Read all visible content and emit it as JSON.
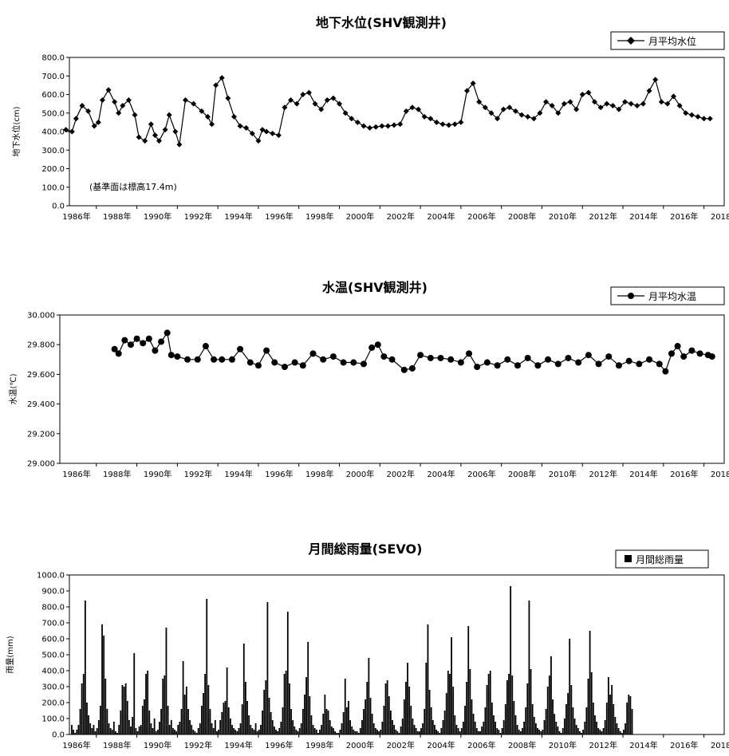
{
  "chart_data": [
    {
      "type": "line",
      "title": "地下水位(SHV観測井)",
      "ylabel": "地下水位(cm)",
      "xlabel": "",
      "xlim": [
        1986,
        2019
      ],
      "ylim": [
        0,
        800
      ],
      "yticks": [
        "0.0",
        "100.0",
        "200.0",
        "300.0",
        "400.0",
        "500.0",
        "600.0",
        "700.0",
        "800.0"
      ],
      "xticks": [
        "1986年",
        "1988年",
        "1990年",
        "1992年",
        "1994年",
        "1996年",
        "1998年",
        "2000年",
        "2002年",
        "2004年",
        "2006年",
        "2008年",
        "2010年",
        "2012年",
        "2014年",
        "2016年",
        "2018年"
      ],
      "annotation": "(基準面は標高17.4m)",
      "legend": "top-right",
      "grid": false,
      "series": [
        {
          "name": "月平均水位",
          "marker": "diamond",
          "x": [
            1986.5,
            1986.8,
            1987.0,
            1987.3,
            1987.6,
            1987.9,
            1988.1,
            1988.3,
            1988.6,
            1988.9,
            1989.1,
            1989.3,
            1989.6,
            1989.9,
            1990.1,
            1990.4,
            1990.7,
            1990.9,
            1991.1,
            1991.4,
            1991.6,
            1991.9,
            1992.1,
            1992.4,
            1992.8,
            1993.2,
            1993.5,
            1993.7,
            1993.9,
            1994.2,
            1994.5,
            1994.8,
            1995.1,
            1995.4,
            1995.7,
            1996.0,
            1996.2,
            1996.4,
            1996.7,
            1997.0,
            1997.3,
            1997.6,
            1997.9,
            1998.2,
            1998.5,
            1998.8,
            1999.1,
            1999.4,
            1999.7,
            2000.0,
            2000.3,
            2000.6,
            2000.9,
            2001.2,
            2001.5,
            2001.8,
            2002.1,
            2002.4,
            2002.7,
            2003.0,
            2003.3,
            2003.6,
            2003.9,
            2004.2,
            2004.5,
            2004.8,
            2005.1,
            2005.4,
            2005.7,
            2006.0,
            2006.3,
            2006.6,
            2006.9,
            2007.2,
            2007.5,
            2007.8,
            2008.1,
            2008.4,
            2008.7,
            2009.0,
            2009.3,
            2009.6,
            2009.9,
            2010.2,
            2010.5,
            2010.8,
            2011.1,
            2011.4,
            2011.7,
            2012.0,
            2012.3,
            2012.6,
            2012.9,
            2013.2,
            2013.5,
            2013.8,
            2014.1,
            2014.4,
            2014.7,
            2015.0,
            2015.3,
            2015.6,
            2015.9,
            2016.2,
            2016.5,
            2016.8,
            2017.1,
            2017.4,
            2017.7,
            2018.0,
            2018.3
          ],
          "y": [
            410,
            400,
            470,
            540,
            510,
            430,
            450,
            570,
            625,
            560,
            500,
            540,
            570,
            490,
            370,
            350,
            440,
            380,
            350,
            410,
            490,
            400,
            330,
            570,
            550,
            510,
            480,
            440,
            650,
            690,
            580,
            480,
            430,
            420,
            390,
            350,
            410,
            400,
            390,
            380,
            530,
            570,
            550,
            600,
            610,
            550,
            520,
            570,
            580,
            550,
            500,
            470,
            450,
            430,
            420,
            425,
            430,
            430,
            435,
            440,
            510,
            530,
            520,
            480,
            470,
            450,
            440,
            435,
            440,
            450,
            620,
            660,
            560,
            530,
            500,
            470,
            520,
            530,
            510,
            490,
            480,
            470,
            500,
            560,
            540,
            500,
            550,
            560,
            520,
            600,
            610,
            560,
            530,
            550,
            540,
            520,
            560,
            550,
            540,
            550,
            620,
            680,
            560,
            550,
            590,
            540,
            500,
            490,
            480,
            470,
            470
          ]
        }
      ]
    },
    {
      "type": "line",
      "title": "水温(SHV観測井)",
      "ylabel": "水温(℃)",
      "xlabel": "",
      "xlim": [
        1986,
        2019
      ],
      "ylim": [
        29.0,
        30.0
      ],
      "yticks": [
        "29.000",
        "29.200",
        "29.400",
        "29.600",
        "29.800",
        "30.000"
      ],
      "xticks": [
        "1986年",
        "1988年",
        "1990年",
        "1992年",
        "1994年",
        "1996年",
        "1998年",
        "2000年",
        "2002年",
        "2004年",
        "2006年",
        "2008年",
        "2010年",
        "2012年",
        "2014年",
        "2016年",
        "2018年"
      ],
      "legend": "top-right",
      "grid": false,
      "series": [
        {
          "name": "月平均水温",
          "marker": "circle",
          "x": [
            1988.9,
            1989.1,
            1989.4,
            1989.7,
            1990.0,
            1990.3,
            1990.6,
            1990.9,
            1991.2,
            1991.5,
            1991.7,
            1992.0,
            1992.5,
            1993.0,
            1993.4,
            1993.8,
            1994.2,
            1994.7,
            1995.1,
            1995.6,
            1996.0,
            1996.4,
            1996.8,
            1997.3,
            1997.8,
            1998.2,
            1998.7,
            1999.2,
            1999.7,
            2000.2,
            2000.7,
            2001.2,
            2001.6,
            2001.9,
            2002.2,
            2002.6,
            2003.2,
            2003.6,
            2004.0,
            2004.5,
            2005.0,
            2005.5,
            2006.0,
            2006.4,
            2006.8,
            2007.3,
            2007.8,
            2008.3,
            2008.8,
            2009.3,
            2009.8,
            2010.3,
            2010.8,
            2011.3,
            2011.8,
            2012.3,
            2012.8,
            2013.3,
            2013.8,
            2014.3,
            2014.8,
            2015.3,
            2015.8,
            2016.1,
            2016.4,
            2016.7,
            2017.0,
            2017.4,
            2017.8,
            2018.2,
            2018.4
          ],
          "y": [
            29.77,
            29.74,
            29.83,
            29.8,
            29.84,
            29.81,
            29.84,
            29.76,
            29.82,
            29.88,
            29.73,
            29.72,
            29.7,
            29.7,
            29.79,
            29.7,
            29.7,
            29.7,
            29.77,
            29.68,
            29.66,
            29.76,
            29.68,
            29.65,
            29.68,
            29.66,
            29.74,
            29.7,
            29.72,
            29.68,
            29.68,
            29.67,
            29.78,
            29.8,
            29.72,
            29.7,
            29.63,
            29.64,
            29.73,
            29.71,
            29.71,
            29.7,
            29.68,
            29.74,
            29.65,
            29.68,
            29.66,
            29.7,
            29.66,
            29.71,
            29.66,
            29.7,
            29.67,
            29.71,
            29.68,
            29.73,
            29.67,
            29.72,
            29.66,
            29.69,
            29.67,
            29.7,
            29.67,
            29.62,
            29.74,
            29.79,
            29.72,
            29.76,
            29.74,
            29.73,
            29.72
          ]
        }
      ]
    },
    {
      "type": "bar",
      "title": "月間総雨量(SEVO)",
      "ylabel": "雨量(mm)",
      "xlabel": "",
      "xlim": [
        1986,
        2019
      ],
      "ylim": [
        0,
        1000
      ],
      "yticks": [
        "0.0",
        "100.0",
        "200.0",
        "300.0",
        "400.0",
        "500.0",
        "600.0",
        "700.0",
        "800.0",
        "900.0",
        "1000.0"
      ],
      "xticks": [
        "1986年",
        "1988年",
        "1990年",
        "1992年",
        "1994年",
        "1996年",
        "1998年",
        "2000年",
        "2002年",
        "2004年",
        "2006年",
        "2008年",
        "2010年",
        "2012年",
        "2014年",
        "2016年",
        "2018年"
      ],
      "legend": "top-right",
      "grid": false,
      "series": [
        {
          "name": "月間総雨量",
          "x_start": 1986.0,
          "x_step": 0.0833333,
          "values": [
            20,
            60,
            150,
            380,
            480,
            120,
            40,
            220,
            150,
            60,
            30,
            10,
            30,
            60,
            160,
            320,
            380,
            840,
            200,
            120,
            70,
            40,
            60,
            20,
            40,
            90,
            180,
            690,
            620,
            350,
            160,
            70,
            40,
            30,
            80,
            20,
            10,
            60,
            150,
            310,
            300,
            320,
            210,
            90,
            50,
            110,
            510,
            40,
            20,
            50,
            60,
            180,
            220,
            380,
            400,
            150,
            70,
            40,
            100,
            20,
            30,
            80,
            160,
            350,
            370,
            670,
            180,
            60,
            90,
            40,
            30,
            20,
            60,
            80,
            160,
            460,
            250,
            300,
            160,
            90,
            60,
            30,
            20,
            10,
            40,
            70,
            180,
            260,
            380,
            850,
            310,
            160,
            70,
            40,
            90,
            20,
            30,
            90,
            140,
            200,
            210,
            420,
            170,
            100,
            60,
            40,
            30,
            20,
            40,
            70,
            190,
            570,
            330,
            210,
            120,
            60,
            40,
            30,
            70,
            20,
            30,
            60,
            150,
            280,
            340,
            830,
            230,
            140,
            90,
            50,
            30,
            20,
            40,
            80,
            170,
            380,
            400,
            770,
            320,
            160,
            90,
            50,
            30,
            20,
            40,
            70,
            160,
            250,
            360,
            580,
            240,
            120,
            60,
            40,
            30,
            10,
            30,
            60,
            130,
            250,
            160,
            150,
            90,
            50,
            40,
            20,
            10,
            10,
            30,
            70,
            140,
            350,
            170,
            210,
            90,
            50,
            30,
            20,
            20,
            10,
            40,
            90,
            160,
            220,
            330,
            480,
            230,
            130,
            70,
            40,
            30,
            20,
            30,
            80,
            180,
            320,
            340,
            240,
            150,
            90,
            60,
            30,
            20,
            10,
            50,
            100,
            220,
            330,
            450,
            300,
            180,
            100,
            60,
            40,
            20,
            20,
            40,
            70,
            160,
            450,
            690,
            280,
            170,
            90,
            60,
            30,
            20,
            10,
            40,
            90,
            150,
            260,
            400,
            380,
            610,
            300,
            120,
            60,
            40,
            20,
            40,
            80,
            180,
            330,
            680,
            410,
            220,
            130,
            80,
            40,
            20,
            20,
            50,
            80,
            170,
            310,
            380,
            400,
            200,
            120,
            80,
            40,
            30,
            10,
            40,
            90,
            190,
            340,
            380,
            930,
            370,
            210,
            120,
            60,
            30,
            20,
            40,
            80,
            170,
            320,
            840,
            410,
            190,
            110,
            70,
            40,
            30,
            20,
            30,
            90,
            160,
            300,
            370,
            490,
            220,
            130,
            80,
            50,
            20,
            10,
            40,
            100,
            190,
            260,
            600,
            310,
            170,
            100,
            60,
            40,
            20,
            10,
            30,
            80,
            170,
            350,
            650,
            390,
            200,
            120,
            80,
            40,
            30,
            20,
            40,
            90,
            200,
            360,
            250,
            310,
            190,
            110,
            70,
            40,
            20,
            10,
            30,
            70,
            200,
            250,
            240,
            160
          ]
        }
      ]
    }
  ]
}
